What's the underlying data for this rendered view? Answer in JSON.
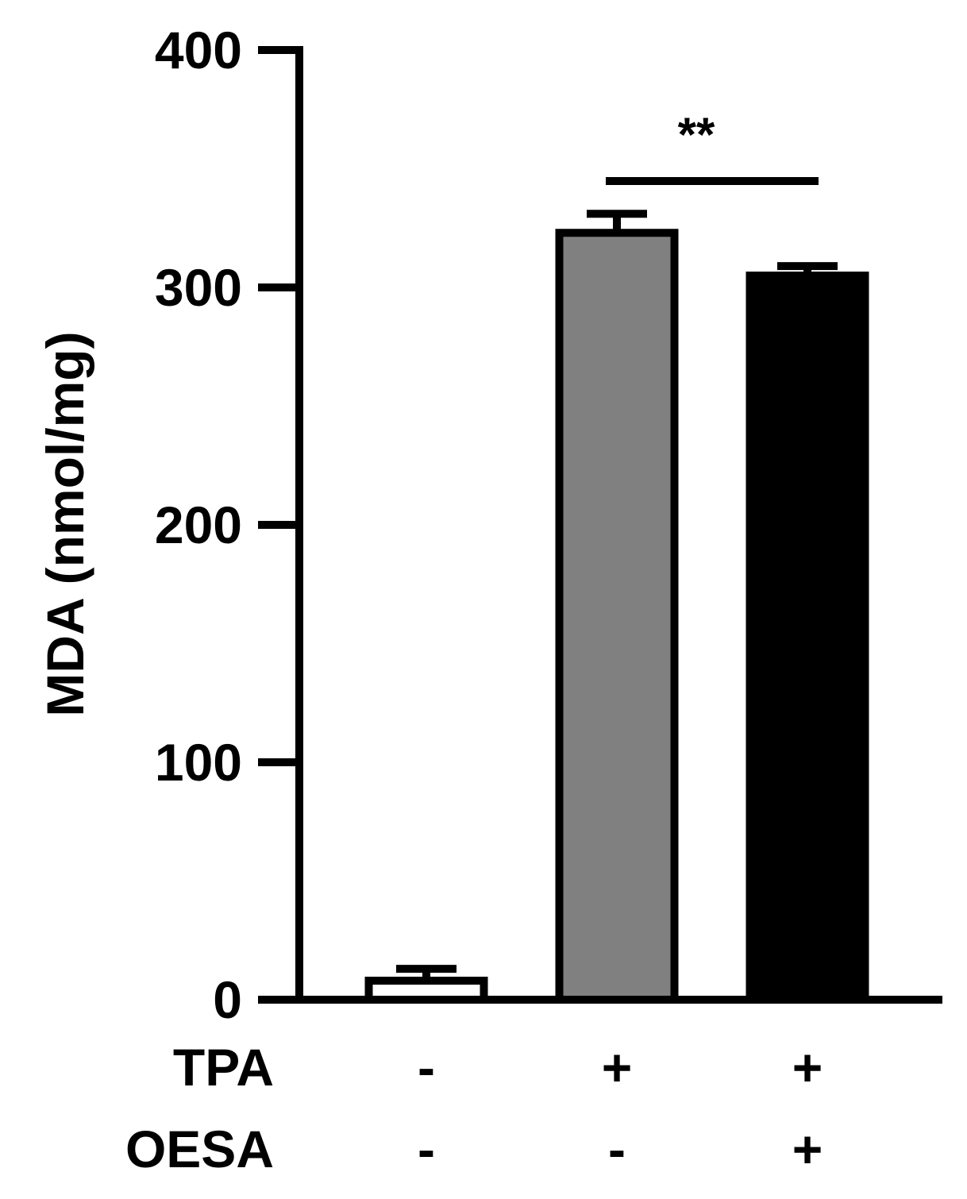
{
  "chart_data": {
    "type": "bar",
    "ylabel": "MDA (nmol/mg)",
    "ylim": [
      0,
      400
    ],
    "yticks": [
      0,
      100,
      200,
      300,
      400
    ],
    "ytick_labels": [
      "0",
      "100",
      "200",
      "300",
      "400"
    ],
    "groups": [
      {
        "TPA": "-",
        "OESA": "-",
        "value": 8,
        "error": 5,
        "fill": "#ffffff"
      },
      {
        "TPA": "+",
        "OESA": "-",
        "value": 323,
        "error": 8,
        "fill": "#808080"
      },
      {
        "TPA": "+",
        "OESA": "+",
        "value": 305,
        "error": 4,
        "fill": "#000000"
      }
    ],
    "factor_labels": [
      "TPA",
      "OESA"
    ],
    "significance": {
      "between": [
        1,
        2
      ],
      "label": "**"
    },
    "grid": false,
    "legend": "none"
  }
}
